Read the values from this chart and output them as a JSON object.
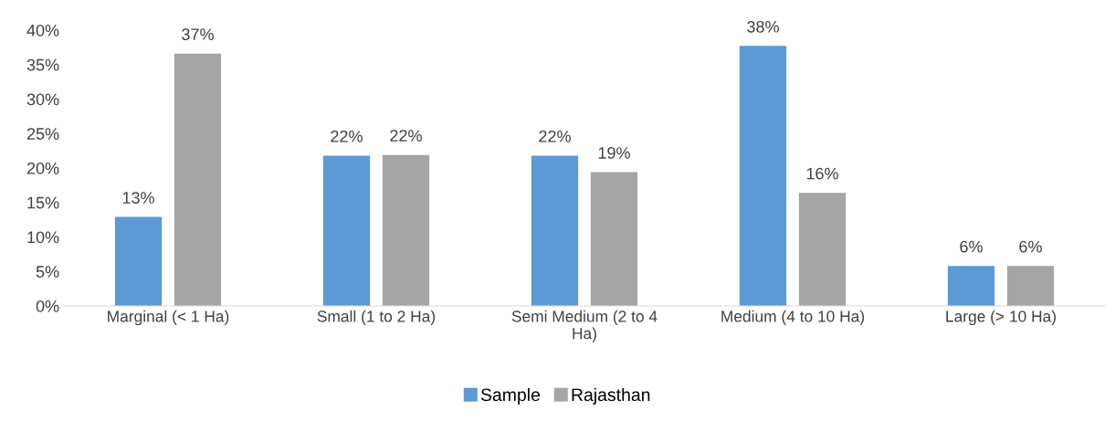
{
  "chart_data": {
    "type": "bar",
    "categories": [
      "Marginal (< 1 Ha)",
      "Small (1 to 2 Ha)",
      "Semi Medium (2 to 4\nHa)",
      "Medium (4 to 10 Ha)",
      "Large (> 10 Ha)"
    ],
    "series": [
      {
        "name": "Sample",
        "color": "#5b9bd5",
        "values": [
          12.9,
          21.8,
          21.8,
          37.7,
          5.8
        ],
        "value_labels": [
          "13%",
          "22%",
          "22%",
          "38%",
          "6%"
        ]
      },
      {
        "name": "Rajasthan",
        "color": "#a5a5a5",
        "values": [
          36.6,
          21.9,
          19.4,
          16.4,
          5.8
        ],
        "value_labels": [
          "37%",
          "22%",
          "19%",
          "16%",
          "6%"
        ]
      }
    ],
    "ylim": [
      0,
      40
    ],
    "yticks": [
      {
        "value": 0,
        "label": "0%"
      },
      {
        "value": 5,
        "label": "5%"
      },
      {
        "value": 10,
        "label": "10%"
      },
      {
        "value": 15,
        "label": "15%"
      },
      {
        "value": 20,
        "label": "20%"
      },
      {
        "value": 25,
        "label": "25%"
      },
      {
        "value": 30,
        "label": "30%"
      },
      {
        "value": 35,
        "label": "35%"
      },
      {
        "value": 40,
        "label": "40%"
      }
    ],
    "grid": false,
    "legend": "bottom"
  }
}
